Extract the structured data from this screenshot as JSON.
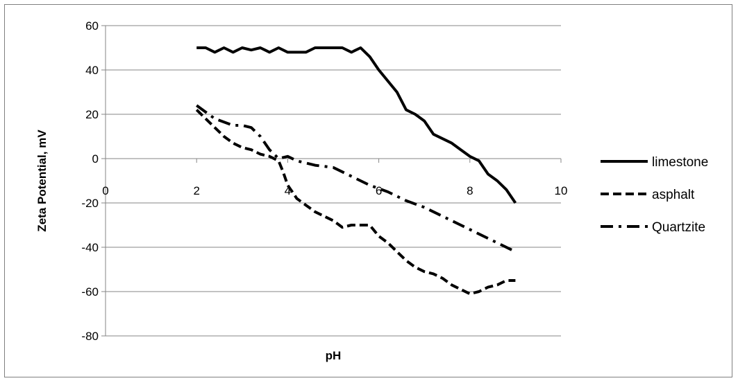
{
  "chart_data": {
    "type": "line",
    "title": "",
    "xlabel": "pH",
    "ylabel": "Zeta Potential, mV",
    "xlim": [
      0,
      10
    ],
    "ylim": [
      -80,
      60
    ],
    "x_ticks": [
      0,
      2,
      4,
      6,
      8,
      10
    ],
    "y_ticks": [
      60,
      40,
      20,
      0,
      -20,
      -40,
      -60,
      -80
    ],
    "grid": "horizontal",
    "legend_position": "right",
    "series": [
      {
        "name": "limestone",
        "color": "#000000",
        "style": "solid",
        "x": [
          2.0,
          2.2,
          2.4,
          2.6,
          2.8,
          3.0,
          3.2,
          3.4,
          3.6,
          3.8,
          4.0,
          4.2,
          4.4,
          4.6,
          4.8,
          5.0,
          5.2,
          5.4,
          5.6,
          5.8,
          6.0,
          6.2,
          6.4,
          6.6,
          6.8,
          7.0,
          7.2,
          7.4,
          7.6,
          7.8,
          8.0,
          8.2,
          8.4,
          8.6,
          8.8,
          9.0
        ],
        "y": [
          50,
          50,
          48,
          50,
          48,
          50,
          49,
          50,
          48,
          50,
          48,
          48,
          48,
          50,
          50,
          50,
          50,
          48,
          50,
          46,
          40,
          35,
          30,
          22,
          20,
          17,
          11,
          9,
          7,
          4,
          1,
          -1,
          -7,
          -10,
          -14,
          -20
        ]
      },
      {
        "name": "asphalt",
        "color": "#000000",
        "style": "dashed",
        "x": [
          2.0,
          2.2,
          2.4,
          2.6,
          2.8,
          3.0,
          3.2,
          3.4,
          3.6,
          3.8,
          3.9,
          4.0,
          4.1,
          4.2,
          4.4,
          4.6,
          4.8,
          5.0,
          5.2,
          5.4,
          5.6,
          5.8,
          6.0,
          6.2,
          6.4,
          6.6,
          6.8,
          7.0,
          7.2,
          7.4,
          7.6,
          7.8,
          8.0,
          8.2,
          8.4,
          8.6,
          8.8,
          9.0
        ],
        "y": [
          22,
          18,
          14,
          10,
          7,
          5,
          4,
          2,
          1,
          -1,
          -6,
          -12,
          -15,
          -18,
          -21,
          -24,
          -26,
          -28,
          -31,
          -30,
          -30,
          -30,
          -35,
          -38,
          -42,
          -46,
          -49,
          -51,
          -52,
          -54,
          -57,
          -59,
          -61,
          -60,
          -58,
          -57,
          -55,
          -55
        ]
      },
      {
        "name": "Quartzite",
        "color": "#000000",
        "style": "dashdot",
        "x": [
          2.0,
          2.4,
          2.8,
          3.0,
          3.2,
          3.4,
          3.6,
          3.8,
          4.0,
          4.2,
          4.6,
          5.0,
          5.4,
          5.8,
          6.2,
          6.6,
          7.0,
          7.4,
          7.8,
          8.2,
          8.6,
          9.0
        ],
        "y": [
          24,
          18,
          15,
          15,
          14,
          10,
          4,
          0,
          1,
          -1,
          -3,
          -4,
          -8,
          -12,
          -15,
          -19,
          -22,
          -26,
          -30,
          -34,
          -38,
          -42
        ]
      }
    ]
  }
}
